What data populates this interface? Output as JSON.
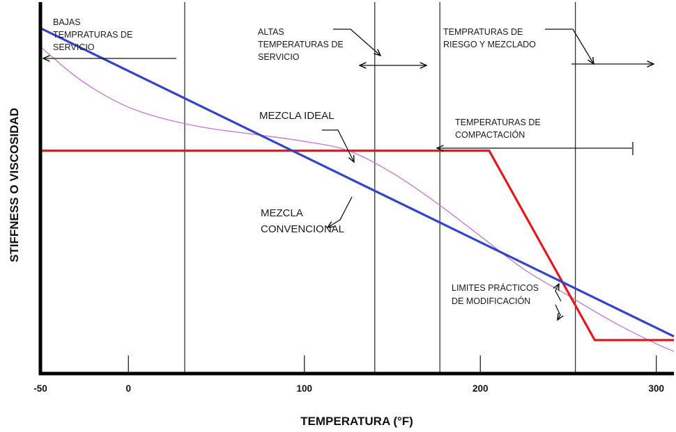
{
  "chart_data": {
    "type": "line",
    "xlabel": "TEMPERATURA (°F)",
    "ylabel": "STIFFNESS O VISCOSIDAD",
    "xlim": [
      -50,
      310
    ],
    "ylim": [
      0,
      100
    ],
    "x_ticks": [
      -50,
      0,
      100,
      200,
      300
    ],
    "x_tick_labels": [
      "-50",
      "0",
      "100",
      "200",
      "300"
    ],
    "y_ticks": [],
    "grid": false,
    "legend": "none",
    "vertical_lines": [
      32,
      140,
      177,
      254
    ],
    "series": [
      {
        "color": "#3344cc",
        "x": [
          -50,
          310
        ],
        "y": [
          93,
          10
        ]
      },
      {
        "color": "#e8171c",
        "x": [
          -50,
          205,
          265,
          310
        ],
        "y": [
          60,
          60,
          9,
          9
        ]
      },
      {
        "color": "#c474d0",
        "x": [
          -50,
          -30,
          -10,
          10,
          40,
          70,
          100,
          125,
          150,
          175,
          200,
          225,
          250,
          275,
          300,
          310
        ],
        "y": [
          88,
          80,
          74,
          70,
          66.5,
          64.5,
          62.5,
          60,
          54,
          46,
          37,
          28,
          21,
          14,
          8,
          6
        ]
      }
    ],
    "annotations": {
      "bajas": [
        "BAJAS",
        "TEMPRATURAS DE",
        "SERVICIO"
      ],
      "altas": [
        "ALTAS",
        "TEMPERATURAS DE",
        "SERVICIO"
      ],
      "riesgo": [
        "TEMPRATURAS DE",
        "RIESGO Y MEZCLADO"
      ],
      "mezcla_ideal": [
        "MEZCLA IDEAL"
      ],
      "compactacion": [
        "TEMPERATURAS DE",
        "COMPACTACIÓN"
      ],
      "convencional": [
        "MEZCLA",
        "CONVENCIONAL"
      ],
      "limites": [
        "LIMITES PRÁCTICOS",
        "DE MODIFICACIÓN"
      ]
    }
  }
}
